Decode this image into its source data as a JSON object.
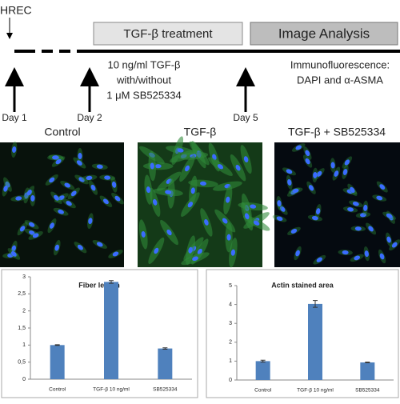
{
  "timeline": {
    "start_label": "HREC",
    "treatment_box": "TGF-β treatment",
    "analysis_box": "Image Analysis",
    "treatment_lines": [
      "10 ng/ml TGF-β",
      "with/without",
      "1 μM SB525334"
    ],
    "analysis_lines": [
      "Immunofluorescence:",
      "DAPI and α-ASMA"
    ],
    "days": [
      "Day 1",
      "Day 2",
      "Day 5"
    ]
  },
  "panels": [
    "Control",
    "TGF-β",
    "TGF-β + SB525334"
  ],
  "chart_data": [
    {
      "type": "bar",
      "title": "Fiber length",
      "categories": [
        "Control",
        "TGF-β 10 ng/ml",
        "SB525334"
      ],
      "values": [
        1,
        2.85,
        0.9
      ],
      "errors": [
        0.01,
        0.04,
        0.02
      ],
      "color": "#4f81bd",
      "ylim": [
        0,
        3
      ],
      "yticks": [
        0,
        {
          "value": 0.5,
          "label": "0,5"
        },
        1,
        {
          "value": 1.5,
          "label": "1,5"
        },
        2,
        {
          "value": 2.5,
          "label": "2,5"
        },
        3
      ]
    },
    {
      "type": "bar",
      "title": "Actin stained area",
      "categories": [
        "Control",
        "TGF-β 10 ng/ml",
        "SB525334"
      ],
      "values": [
        1,
        4.03,
        0.93
      ],
      "errors": [
        0.05,
        0.18,
        0.02
      ],
      "color": "#4f81bd",
      "ylim": [
        0,
        5
      ],
      "yticks": [
        0,
        1,
        2,
        3,
        4,
        5
      ]
    }
  ]
}
